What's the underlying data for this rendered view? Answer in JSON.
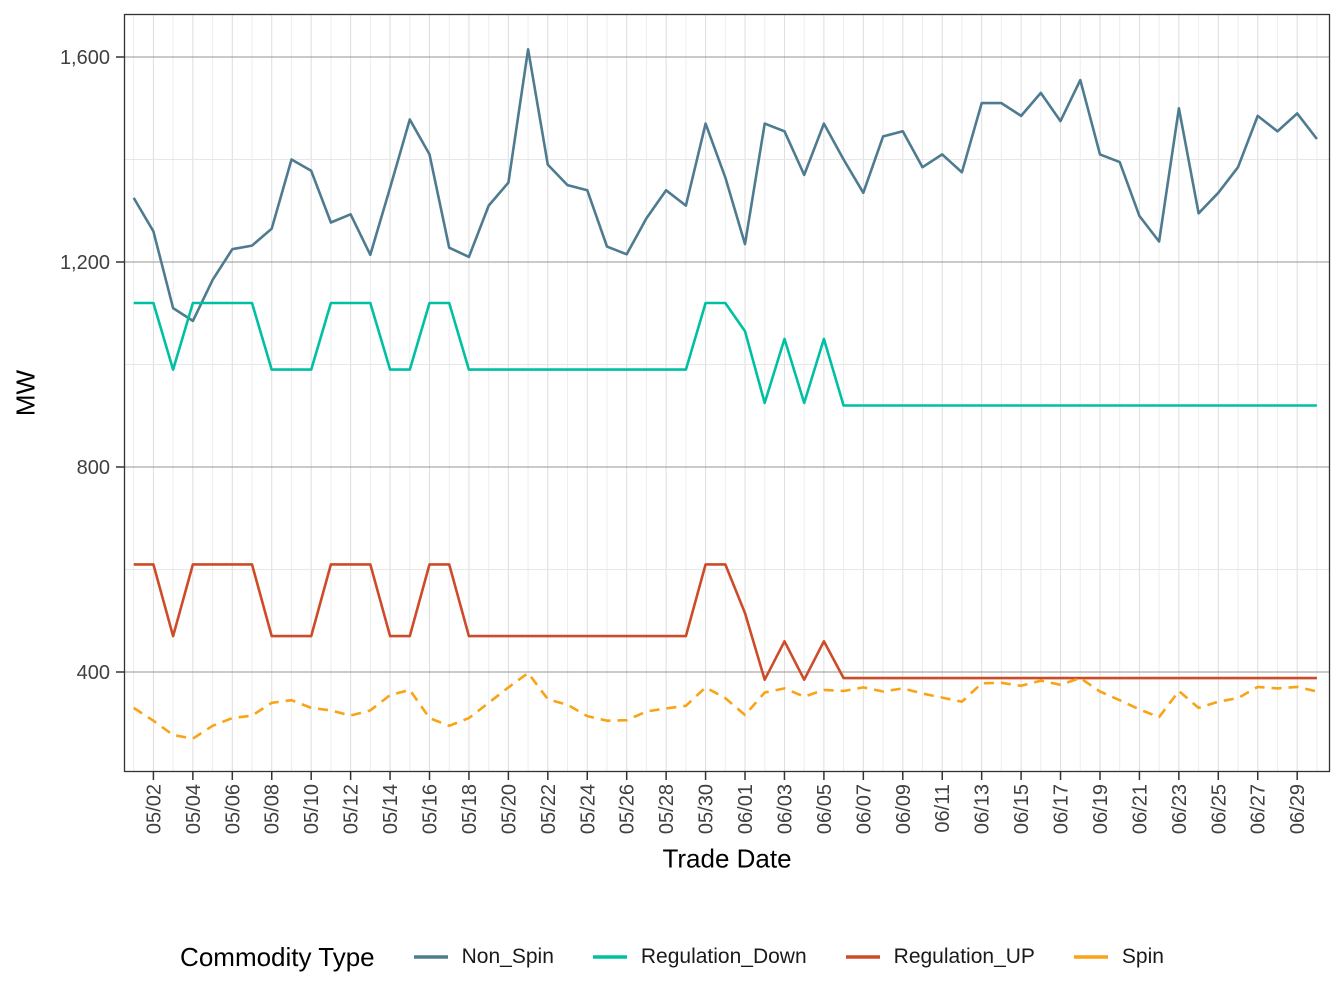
{
  "chart_data": {
    "type": "line",
    "title": "",
    "xlabel": "Trade Date",
    "ylabel": "MW",
    "legend_title": "Commodity Type",
    "legend_position": "bottom",
    "grid": "horizontal major dark at labeled breaks, light minor grid elsewhere",
    "ylim": [
      205,
      1685
    ],
    "yticks": [
      400,
      800,
      1200,
      1600
    ],
    "ytick_labels": [
      "400",
      "800",
      "1,200",
      "1,600"
    ],
    "x": [
      "05/01",
      "05/02",
      "05/03",
      "05/04",
      "05/05",
      "05/06",
      "05/07",
      "05/08",
      "05/09",
      "05/10",
      "05/11",
      "05/12",
      "05/13",
      "05/14",
      "05/15",
      "05/16",
      "05/17",
      "05/18",
      "05/19",
      "05/20",
      "05/21",
      "05/22",
      "05/23",
      "05/24",
      "05/25",
      "05/26",
      "05/27",
      "05/28",
      "05/29",
      "05/30",
      "05/31",
      "06/01",
      "06/02",
      "06/03",
      "06/04",
      "06/05",
      "06/06",
      "06/07",
      "06/08",
      "06/09",
      "06/10",
      "06/11",
      "06/12",
      "06/13",
      "06/14",
      "06/15",
      "06/16",
      "06/17",
      "06/18",
      "06/19",
      "06/20",
      "06/21",
      "06/22",
      "06/23",
      "06/24",
      "06/25",
      "06/26",
      "06/27",
      "06/28",
      "06/29",
      "06/30"
    ],
    "x_tick_labels": [
      "05/02",
      "05/04",
      "05/06",
      "05/08",
      "05/10",
      "05/12",
      "05/14",
      "05/16",
      "05/18",
      "05/20",
      "05/22",
      "05/24",
      "05/26",
      "05/28",
      "05/30",
      "06/01",
      "06/03",
      "06/05",
      "06/07",
      "06/09",
      "06/11",
      "06/13",
      "06/15",
      "06/17",
      "06/19",
      "06/21",
      "06/23",
      "06/25",
      "06/27",
      "06/29"
    ],
    "series": [
      {
        "name": "Non_Spin",
        "color": "#4e7b8f",
        "dash": "solid",
        "values": [
          1325,
          1260,
          1110,
          1085,
          1165,
          1225,
          1232,
          1265,
          1400,
          1378,
          1277,
          1293,
          1214,
          1345,
          1478,
          1410,
          1228,
          1210,
          1310,
          1355,
          1615,
          1390,
          1350,
          1340,
          1230,
          1215,
          1285,
          1340,
          1310,
          1470,
          1365,
          1235,
          1470,
          1455,
          1370,
          1470,
          1400,
          1335,
          1445,
          1455,
          1385,
          1410,
          1375,
          1510,
          1510,
          1485,
          1530,
          1475,
          1555,
          1410,
          1395,
          1290,
          1240,
          1500,
          1295,
          1335,
          1385,
          1485,
          1455,
          1490,
          1440
        ]
      },
      {
        "name": "Regulation_Down",
        "color": "#00c0a3",
        "dash": "solid",
        "values": [
          1120,
          1120,
          990,
          1120,
          1120,
          1120,
          1120,
          990,
          990,
          990,
          1120,
          1120,
          1120,
          990,
          990,
          1120,
          1120,
          990,
          990,
          990,
          990,
          990,
          990,
          990,
          990,
          990,
          990,
          990,
          990,
          1120,
          1120,
          1065,
          925,
          1050,
          925,
          1050,
          920,
          920,
          920,
          920,
          920,
          920,
          920,
          920,
          920,
          920,
          920,
          920,
          920,
          920,
          920,
          920,
          920,
          920,
          920,
          920,
          920,
          920,
          920,
          920,
          920
        ]
      },
      {
        "name": "Regulation_UP",
        "color": "#cd4b28",
        "dash": "solid",
        "values": [
          610,
          610,
          470,
          610,
          610,
          610,
          610,
          470,
          470,
          470,
          610,
          610,
          610,
          470,
          470,
          610,
          610,
          470,
          470,
          470,
          470,
          470,
          470,
          470,
          470,
          470,
          470,
          470,
          470,
          610,
          610,
          515,
          385,
          460,
          385,
          460,
          388,
          388,
          388,
          388,
          388,
          388,
          388,
          388,
          388,
          388,
          388,
          388,
          388,
          388,
          388,
          388,
          388,
          388,
          388,
          388,
          388,
          388,
          388,
          388,
          388
        ]
      },
      {
        "name": "Spin",
        "color": "#f9a315",
        "dash": "dashed",
        "values": [
          330,
          305,
          277,
          270,
          295,
          310,
          315,
          340,
          345,
          330,
          325,
          315,
          325,
          355,
          365,
          310,
          295,
          310,
          340,
          370,
          398,
          347,
          336,
          314,
          305,
          306,
          323,
          329,
          334,
          370,
          349,
          316,
          360,
          368,
          352,
          365,
          363,
          370,
          362,
          368,
          358,
          350,
          342,
          378,
          379,
          373,
          383,
          375,
          388,
          362,
          345,
          327,
          312,
          363,
          330,
          342,
          349,
          371,
          368,
          371,
          362
        ]
      }
    ]
  },
  "style_colors": {
    "panel_border": "#333333",
    "grid_major_h": "#969696",
    "grid_light": "#e7e7e7",
    "tick_mark": "#333333",
    "tick_label": "#404040"
  }
}
